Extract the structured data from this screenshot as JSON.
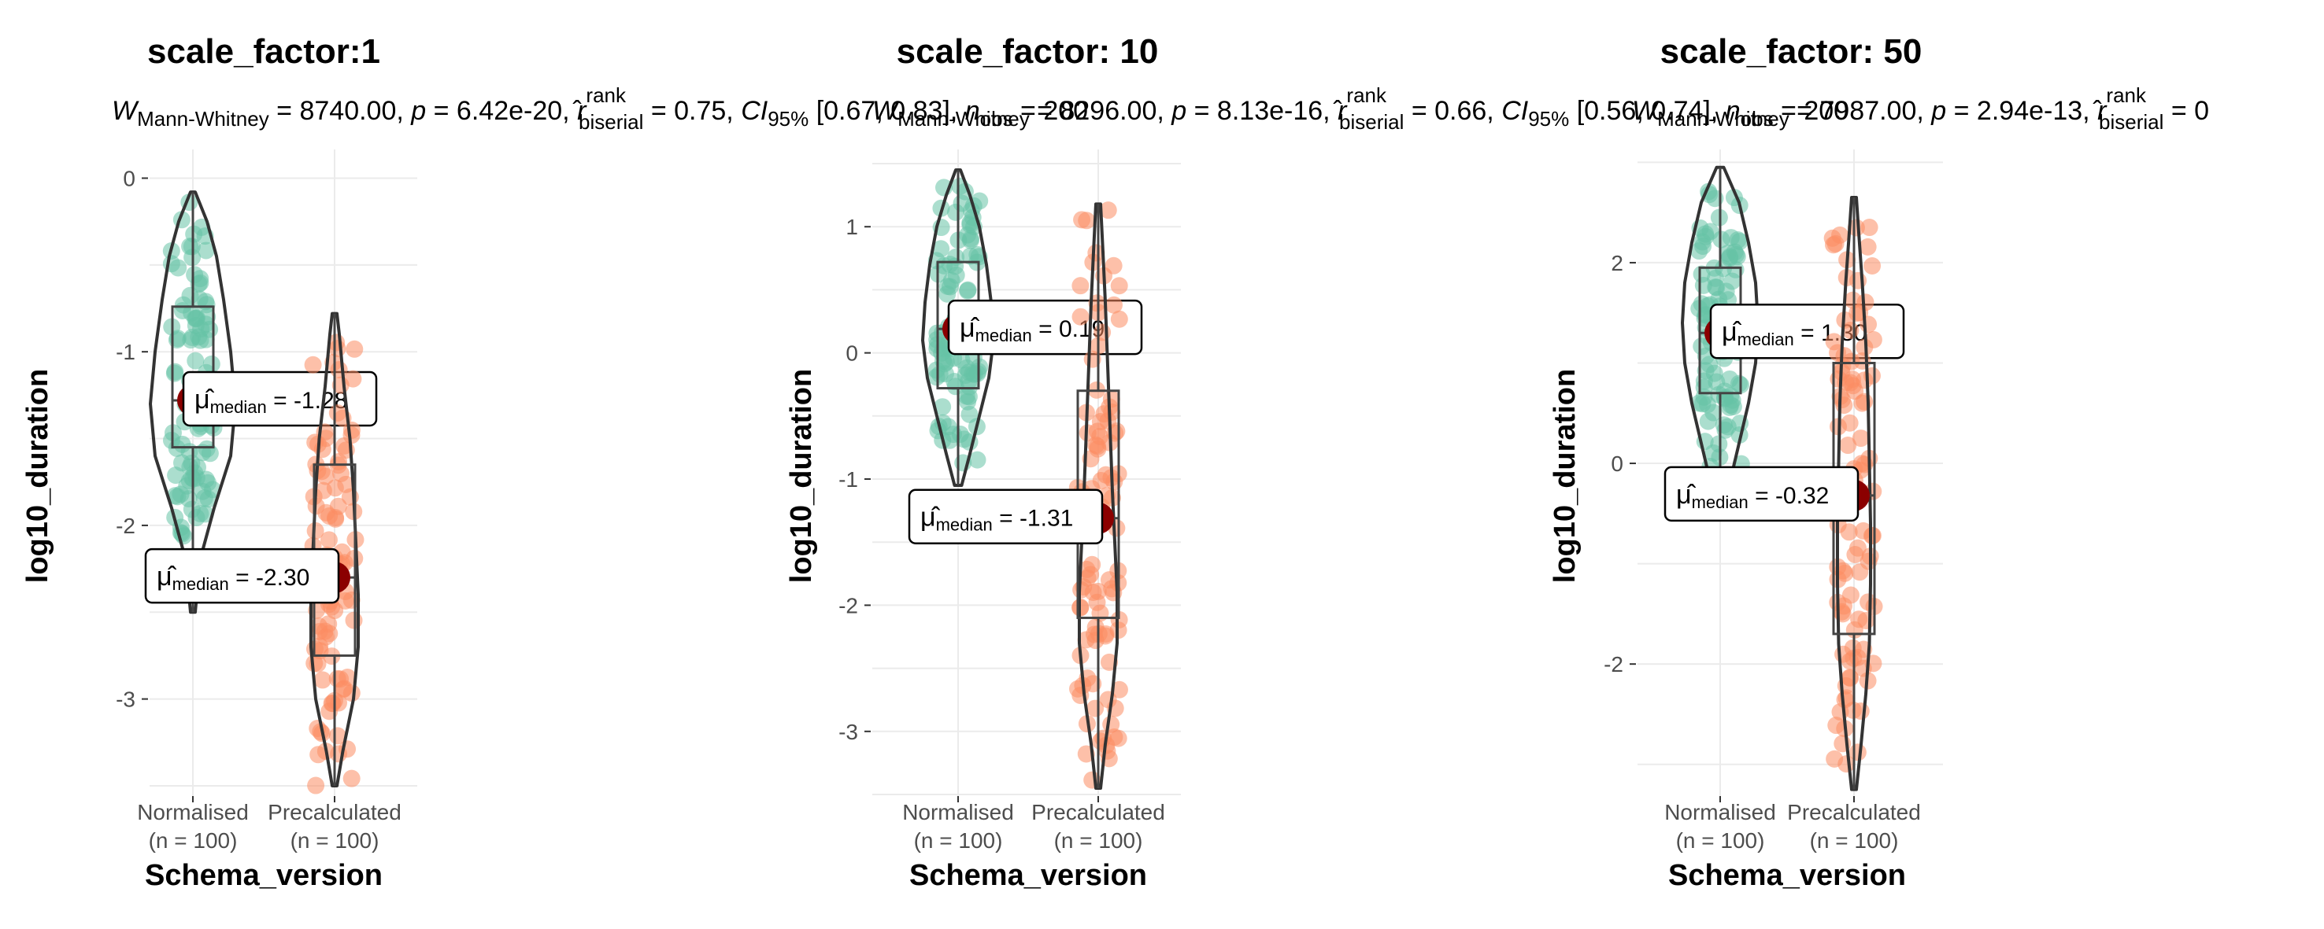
{
  "colors": {
    "normalised": "#66c2a5",
    "precalculated": "#fc8d62",
    "violin": "#333333",
    "median_point": "#8b0000",
    "grid": "#ebebeb"
  },
  "axis": {
    "xlabel": "Schema_version",
    "ylabel": "log10_duration"
  },
  "chart_data": [
    {
      "type": "violin",
      "title": "scale_factor:1",
      "subtitle": {
        "w": "W",
        "w_sub": "Mann-Whitney",
        "w_val": " = 8740.00, ",
        "p": "p",
        "p_val": " = 6.42e-20, ",
        "r": "r",
        "r_sup": "rank",
        "r_sub": "biserial",
        "r_val": " = 0.75, ",
        "ci": "CI",
        "ci_sub": "95%",
        "ci_val": " [0.67, 0.83], ",
        "n": "n",
        "n_sub": "obs",
        "n_val": " = 200"
      },
      "categories": [
        {
          "label": "Normalised",
          "n": "(n = 100)"
        },
        {
          "label": "Precalculated",
          "n": "(n = 100)"
        }
      ],
      "ylim": [
        -3.55,
        0.12
      ],
      "yticks": [
        0,
        -1,
        -2,
        -3
      ],
      "ytick_labels": [
        "0",
        "-1",
        "-2",
        "-3"
      ],
      "groups": [
        {
          "median": -1.28,
          "q1": -1.55,
          "q3": -0.74,
          "min": -2.5,
          "max": -0.08,
          "median_label": "-1.28",
          "density": [
            [
              -2.5,
              0.02
            ],
            [
              -2.2,
              0.06
            ],
            [
              -1.9,
              0.18
            ],
            [
              -1.6,
              0.32
            ],
            [
              -1.3,
              0.36
            ],
            [
              -1.0,
              0.32
            ],
            [
              -0.7,
              0.26
            ],
            [
              -0.45,
              0.2
            ],
            [
              -0.25,
              0.12
            ],
            [
              -0.08,
              0.02
            ]
          ]
        },
        {
          "median": -2.3,
          "q1": -2.75,
          "q3": -1.65,
          "min": -3.5,
          "max": -0.78,
          "median_label": "-2.30",
          "density": [
            [
              -3.5,
              0.02
            ],
            [
              -3.3,
              0.07
            ],
            [
              -3.0,
              0.16
            ],
            [
              -2.7,
              0.2
            ],
            [
              -2.4,
              0.2
            ],
            [
              -2.1,
              0.18
            ],
            [
              -1.8,
              0.16
            ],
            [
              -1.5,
              0.13
            ],
            [
              -1.2,
              0.08
            ],
            [
              -0.9,
              0.04
            ],
            [
              -0.78,
              0.02
            ]
          ]
        }
      ]
    },
    {
      "type": "violin",
      "title": "scale_factor: 10",
      "subtitle": {
        "w": "W",
        "w_sub": "Mann-Whitney",
        "w_val": " = 8296.00, ",
        "p": "p",
        "p_val": " = 8.13e-16, ",
        "r": "r",
        "r_sup": "rank",
        "r_sub": "biserial",
        "r_val": " = 0.66, ",
        "ci": "CI",
        "ci_sub": "95%",
        "ci_val": " [0.56, 0.74], ",
        "n": "n",
        "n_sub": "obs",
        "n_val": " = 200"
      },
      "categories": [
        {
          "label": "Normalised",
          "n": "(n = 100)"
        },
        {
          "label": "Precalculated",
          "n": "(n = 100)"
        }
      ],
      "ylim": [
        -3.5,
        1.55
      ],
      "yticks": [
        1,
        0,
        -1,
        -2,
        -3
      ],
      "ytick_labels": [
        "1",
        "0",
        "-1",
        "-2",
        "-3"
      ],
      "groups": [
        {
          "median": 0.19,
          "q1": -0.28,
          "q3": 0.72,
          "min": -1.05,
          "max": 1.45,
          "median_label": "0.19",
          "density": [
            [
              -1.05,
              0.03
            ],
            [
              -0.8,
              0.1
            ],
            [
              -0.5,
              0.18
            ],
            [
              -0.2,
              0.26
            ],
            [
              0.1,
              0.3
            ],
            [
              0.4,
              0.28
            ],
            [
              0.7,
              0.24
            ],
            [
              1.0,
              0.18
            ],
            [
              1.25,
              0.1
            ],
            [
              1.45,
              0.02
            ]
          ]
        },
        {
          "median": -1.31,
          "q1": -2.1,
          "q3": -0.3,
          "min": -3.45,
          "max": 1.18,
          "median_label": "-1.31",
          "density": [
            [
              -3.45,
              0.02
            ],
            [
              -3.1,
              0.06
            ],
            [
              -2.7,
              0.12
            ],
            [
              -2.3,
              0.16
            ],
            [
              -1.9,
              0.16
            ],
            [
              -1.5,
              0.14
            ],
            [
              -1.1,
              0.12
            ],
            [
              -0.6,
              0.1
            ],
            [
              -0.1,
              0.08
            ],
            [
              0.4,
              0.06
            ],
            [
              0.8,
              0.04
            ],
            [
              1.18,
              0.02
            ]
          ]
        }
      ]
    },
    {
      "type": "violin",
      "title": "scale_factor: 50",
      "subtitle": {
        "w": "W",
        "w_sub": "Mann-Whitney",
        "w_val": " = 7987.00, ",
        "p": "p",
        "p_val": " = 2.94e-13, ",
        "r": "r",
        "r_sup": "rank",
        "r_sub": "biserial",
        "r_val": " = 0",
        "ci": "",
        "ci_sub": "",
        "ci_val": "",
        "n": "",
        "n_sub": "",
        "n_val": ""
      },
      "categories": [
        {
          "label": "Normalised",
          "n": "(n = 100)"
        },
        {
          "label": "Precalculated",
          "n": "(n = 100)"
        }
      ],
      "ylim": [
        -3.3,
        3.05
      ],
      "yticks": [
        2,
        0,
        -2
      ],
      "ytick_labels": [
        "2",
        "0",
        "-2"
      ],
      "groups": [
        {
          "median": 1.3,
          "q1": 0.7,
          "q3": 1.95,
          "min": -0.55,
          "max": 2.95,
          "median_label": "1.30",
          "density": [
            [
              -0.55,
              0.03
            ],
            [
              -0.2,
              0.08
            ],
            [
              0.2,
              0.16
            ],
            [
              0.6,
              0.24
            ],
            [
              1.0,
              0.3
            ],
            [
              1.4,
              0.32
            ],
            [
              1.8,
              0.3
            ],
            [
              2.2,
              0.24
            ],
            [
              2.6,
              0.16
            ],
            [
              2.95,
              0.03
            ]
          ]
        },
        {
          "median": -0.32,
          "q1": -1.7,
          "q3": 1.0,
          "min": -3.25,
          "max": 2.65,
          "median_label": "-0.32",
          "density": [
            [
              -3.25,
              0.02
            ],
            [
              -2.8,
              0.06
            ],
            [
              -2.3,
              0.1
            ],
            [
              -1.8,
              0.13
            ],
            [
              -1.2,
              0.14
            ],
            [
              -0.6,
              0.14
            ],
            [
              0.0,
              0.13
            ],
            [
              0.6,
              0.12
            ],
            [
              1.2,
              0.1
            ],
            [
              1.8,
              0.07
            ],
            [
              2.3,
              0.04
            ],
            [
              2.65,
              0.02
            ]
          ]
        }
      ]
    }
  ]
}
